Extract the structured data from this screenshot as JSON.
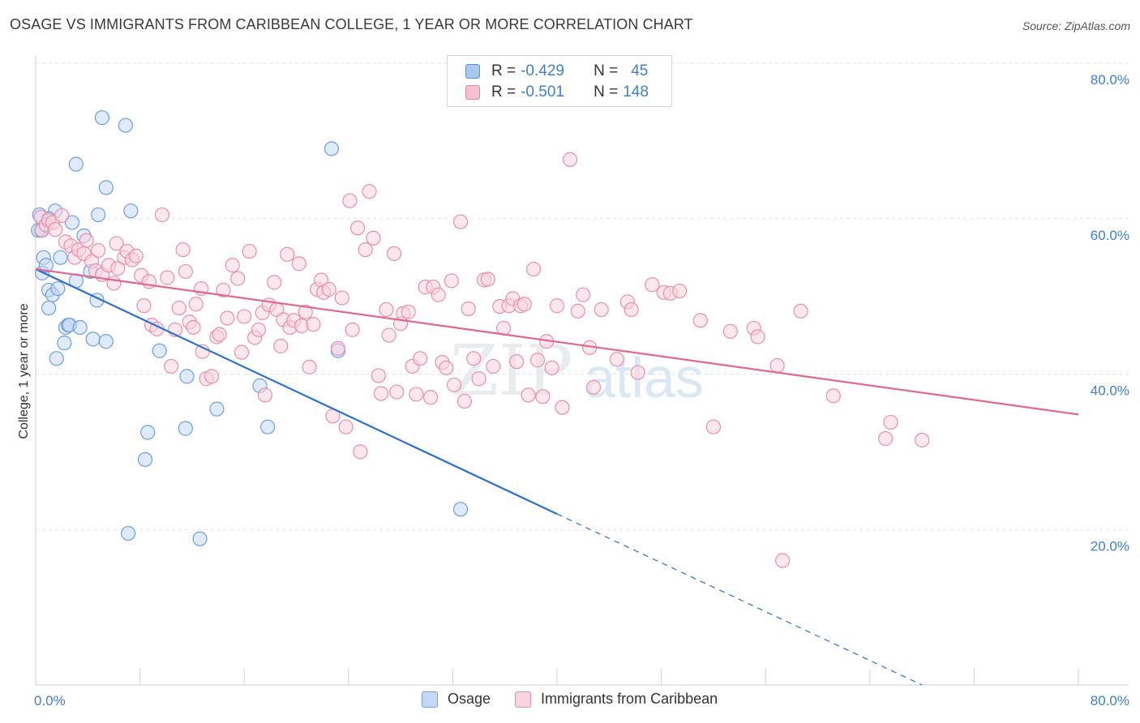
{
  "title": "OSAGE VS IMMIGRANTS FROM CARIBBEAN COLLEGE, 1 YEAR OR MORE CORRELATION CHART",
  "source": "Source: ZipAtlas.com",
  "watermark": {
    "zip": "ZIP",
    "atlas": "atlas"
  },
  "legend": {
    "rows": [
      {
        "r_label": "R = ",
        "r_value": "-0.429",
        "n_label": "N = ",
        "n_value": "45",
        "color": "#a9c8f0",
        "border": "#5a8fd6"
      },
      {
        "r_label": "R = ",
        "r_value": "-0.501",
        "n_label": "N = ",
        "n_value": "148",
        "color": "#f6c0d0",
        "border": "#e6849f"
      }
    ]
  },
  "bottom_legend": [
    {
      "label": "Osage",
      "color": "#c5d9f5",
      "border": "#6f9fdf"
    },
    {
      "label": "Immigrants from Caribbean",
      "color": "#f9d3df",
      "border": "#e890ab"
    }
  ],
  "chart_data": {
    "type": "scatter",
    "xlabel": "",
    "ylabel": "College, 1 year or more",
    "xlim": [
      0,
      80
    ],
    "ylim": [
      0,
      80
    ],
    "x_tick_labels": [
      {
        "value": 0,
        "label": "0.0%"
      },
      {
        "value": 80,
        "label": "80.0%"
      }
    ],
    "y_tick_labels": [
      {
        "value": 20,
        "label": "20.0%"
      },
      {
        "value": 40,
        "label": "40.0%"
      },
      {
        "value": 60,
        "label": "60.0%"
      },
      {
        "value": 80,
        "label": "80.0%"
      }
    ],
    "grid": true,
    "series": [
      {
        "name": "Osage",
        "color": "#6f9fdf",
        "fill": "#c5d9f5",
        "trend": {
          "x0": 0,
          "y0": 53.5,
          "x1": 40,
          "y1": 22.0,
          "dash_to_x": 68,
          "dash_to_y": 0
        },
        "points": [
          [
            0.3,
            60.5
          ],
          [
            0.4,
            58.5
          ],
          [
            0.5,
            53
          ],
          [
            0.6,
            55
          ],
          [
            0.8,
            54
          ],
          [
            1.0,
            48.5
          ],
          [
            1.0,
            50.8
          ],
          [
            1.3,
            50.2
          ],
          [
            1.5,
            61
          ],
          [
            1.7,
            51
          ],
          [
            1.6,
            42
          ],
          [
            1.9,
            55
          ],
          [
            2.2,
            44
          ],
          [
            2.3,
            46
          ],
          [
            2.5,
            46.3
          ],
          [
            2.6,
            46.3
          ],
          [
            2.8,
            59.5
          ],
          [
            3.1,
            52
          ],
          [
            3.1,
            67
          ],
          [
            3.4,
            46
          ],
          [
            3.7,
            57.8
          ],
          [
            4.2,
            53.2
          ],
          [
            4.4,
            44.5
          ],
          [
            4.7,
            49.5
          ],
          [
            4.8,
            60.5
          ],
          [
            5.1,
            73
          ],
          [
            5.4,
            44.2
          ],
          [
            5.4,
            64
          ],
          [
            6.9,
            72
          ],
          [
            7.1,
            19.5
          ],
          [
            7.3,
            61
          ],
          [
            8.4,
            29
          ],
          [
            8.6,
            32.5
          ],
          [
            9.5,
            43
          ],
          [
            11.5,
            33
          ],
          [
            11.6,
            39.7
          ],
          [
            13.9,
            35.5
          ],
          [
            12.6,
            18.8
          ],
          [
            17.8,
            33.2
          ],
          [
            17.2,
            38.5
          ],
          [
            22.7,
            69
          ],
          [
            23.2,
            43
          ],
          [
            32.6,
            22.6
          ],
          [
            1.0,
            60
          ],
          [
            0.2,
            58.5
          ]
        ]
      },
      {
        "name": "Immigrants from Caribbean",
        "color": "#e890ab",
        "fill": "#f9d3df",
        "trend": {
          "x0": 0,
          "y0": 53.5,
          "x1": 80,
          "y1": 34.8
        },
        "points": [
          [
            0.4,
            60.2
          ],
          [
            0.5,
            58.5
          ],
          [
            0.8,
            59.2
          ],
          [
            1.0,
            59.8
          ],
          [
            1.3,
            59.5
          ],
          [
            1.5,
            58.6
          ],
          [
            2.0,
            60.4
          ],
          [
            2.3,
            57
          ],
          [
            2.7,
            56.5
          ],
          [
            3.0,
            55
          ],
          [
            3.3,
            56
          ],
          [
            3.7,
            55.5
          ],
          [
            3.9,
            57.2
          ],
          [
            4.3,
            54.5
          ],
          [
            4.6,
            53.3
          ],
          [
            4.8,
            55.9
          ],
          [
            5.1,
            52.8
          ],
          [
            5.6,
            54
          ],
          [
            6.0,
            51.7
          ],
          [
            6.2,
            56.8
          ],
          [
            6.3,
            53.6
          ],
          [
            6.8,
            55
          ],
          [
            7.0,
            55.8
          ],
          [
            7.4,
            54.7
          ],
          [
            7.7,
            55.2
          ],
          [
            8.1,
            52.7
          ],
          [
            8.3,
            48.8
          ],
          [
            8.7,
            51.9
          ],
          [
            8.9,
            46.3
          ],
          [
            9.3,
            45.8
          ],
          [
            9.7,
            60.5
          ],
          [
            10.1,
            52.4
          ],
          [
            10.4,
            41
          ],
          [
            10.7,
            45.7
          ],
          [
            11.0,
            48.5
          ],
          [
            11.3,
            56
          ],
          [
            11.5,
            53.2
          ],
          [
            11.8,
            46.7
          ],
          [
            12.1,
            46
          ],
          [
            12.3,
            49
          ],
          [
            12.7,
            51
          ],
          [
            12.8,
            42.9
          ],
          [
            13.1,
            39.4
          ],
          [
            13.5,
            39.7
          ],
          [
            13.9,
            44.8
          ],
          [
            14.1,
            45.1
          ],
          [
            14.4,
            50.8
          ],
          [
            14.7,
            47.2
          ],
          [
            15.1,
            54
          ],
          [
            15.5,
            52.3
          ],
          [
            15.8,
            42.8
          ],
          [
            16.0,
            47.4
          ],
          [
            16.4,
            55.8
          ],
          [
            16.8,
            44.7
          ],
          [
            17.1,
            45.7
          ],
          [
            17.4,
            47.9
          ],
          [
            17.6,
            37.3
          ],
          [
            17.9,
            48.9
          ],
          [
            18.3,
            51.8
          ],
          [
            18.5,
            48.3
          ],
          [
            18.8,
            43.6
          ],
          [
            19.0,
            47
          ],
          [
            19.3,
            55.4
          ],
          [
            19.5,
            46
          ],
          [
            19.8,
            46.9
          ],
          [
            20.2,
            54.2
          ],
          [
            20.4,
            46.2
          ],
          [
            20.7,
            48
          ],
          [
            21.0,
            40.9
          ],
          [
            21.3,
            46.4
          ],
          [
            21.6,
            50.9
          ],
          [
            21.9,
            52.1
          ],
          [
            22.1,
            50.5
          ],
          [
            22.5,
            50.9
          ],
          [
            22.8,
            34.6
          ],
          [
            23.2,
            43.3
          ],
          [
            23.5,
            49.8
          ],
          [
            23.8,
            33.2
          ],
          [
            24.1,
            62.3
          ],
          [
            24.3,
            45.7
          ],
          [
            24.7,
            58.8
          ],
          [
            24.9,
            30
          ],
          [
            25.3,
            56
          ],
          [
            25.6,
            63.5
          ],
          [
            25.9,
            57.5
          ],
          [
            26.3,
            39.8
          ],
          [
            26.5,
            37.5
          ],
          [
            26.9,
            48.3
          ],
          [
            27.1,
            45
          ],
          [
            27.5,
            55.5
          ],
          [
            27.7,
            37.7
          ],
          [
            28.0,
            46.5
          ],
          [
            28.2,
            47.8
          ],
          [
            28.6,
            48
          ],
          [
            28.9,
            41
          ],
          [
            29.2,
            37.4
          ],
          [
            29.5,
            42
          ],
          [
            29.9,
            51.2
          ],
          [
            30.3,
            37
          ],
          [
            30.5,
            51.2
          ],
          [
            30.9,
            50.2
          ],
          [
            31.2,
            41.5
          ],
          [
            31.5,
            40.8
          ],
          [
            31.9,
            52
          ],
          [
            32.1,
            38.6
          ],
          [
            32.6,
            59.6
          ],
          [
            32.9,
            36.5
          ],
          [
            33.2,
            48.4
          ],
          [
            33.6,
            42
          ],
          [
            34.0,
            39.4
          ],
          [
            34.4,
            52.1
          ],
          [
            34.7,
            52.2
          ],
          [
            35.1,
            41
          ],
          [
            35.6,
            48.7
          ],
          [
            35.9,
            45.9
          ],
          [
            36.3,
            48.8
          ],
          [
            36.6,
            49.7
          ],
          [
            36.9,
            41.6
          ],
          [
            37.2,
            48.8
          ],
          [
            37.5,
            49
          ],
          [
            37.8,
            37.3
          ],
          [
            38.2,
            53.5
          ],
          [
            38.5,
            41.8
          ],
          [
            38.9,
            37.1
          ],
          [
            39.2,
            44.2
          ],
          [
            39.6,
            40.8
          ],
          [
            40.0,
            48.8
          ],
          [
            40.4,
            35.7
          ],
          [
            41.0,
            67.6
          ],
          [
            41.6,
            48.1
          ],
          [
            42.0,
            50.2
          ],
          [
            42.5,
            43.4
          ],
          [
            42.8,
            38.3
          ],
          [
            43.4,
            48.3
          ],
          [
            44.6,
            41.9
          ],
          [
            45.4,
            49.3
          ],
          [
            45.7,
            48.3
          ],
          [
            46.2,
            40.2
          ],
          [
            47.3,
            51.5
          ],
          [
            48.2,
            50.5
          ],
          [
            48.7,
            50.4
          ],
          [
            49.4,
            50.7
          ],
          [
            51.0,
            46.9
          ],
          [
            52.0,
            33.2
          ],
          [
            53.3,
            45.5
          ],
          [
            55.1,
            45.9
          ],
          [
            55.4,
            44.8
          ],
          [
            56.9,
            41.1
          ],
          [
            57.3,
            16
          ],
          [
            58.7,
            48.1
          ],
          [
            61.2,
            37.2
          ],
          [
            65.2,
            31.7
          ],
          [
            65.6,
            33.8
          ],
          [
            68.0,
            31.5
          ]
        ]
      }
    ]
  }
}
